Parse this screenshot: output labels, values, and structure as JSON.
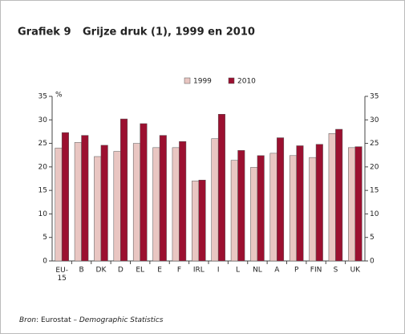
{
  "chart_data": {
    "type": "bar",
    "label": "Grafiek 9",
    "title": "Grijze druk (1), 1999 en 2010",
    "ylabel": "%",
    "categories": [
      "EU-15",
      "B",
      "DK",
      "D",
      "EL",
      "E",
      "F",
      "IRL",
      "I",
      "L",
      "NL",
      "A",
      "P",
      "FIN",
      "S",
      "UK"
    ],
    "series": [
      {
        "name": "1999",
        "color": "#e9c6c2",
        "values": [
          24,
          25.2,
          22.2,
          23.3,
          25,
          24.1,
          24.1,
          17,
          26,
          21.4,
          19.9,
          22.9,
          22.4,
          22,
          27.1,
          24.1
        ]
      },
      {
        "name": "2010",
        "color": "#9b1030",
        "values": [
          27.3,
          26.7,
          24.6,
          30.2,
          29.2,
          26.7,
          25.4,
          17.2,
          31.2,
          23.5,
          22.4,
          26.2,
          24.5,
          24.8,
          28,
          24.3
        ]
      }
    ],
    "ylim": [
      0,
      35
    ],
    "yticks": [
      0,
      5,
      10,
      15,
      20,
      25,
      30,
      35
    ],
    "source": {
      "prefix": "Bron",
      "middle": ": Eurostat – ",
      "title": "Demographic Statistics"
    }
  }
}
